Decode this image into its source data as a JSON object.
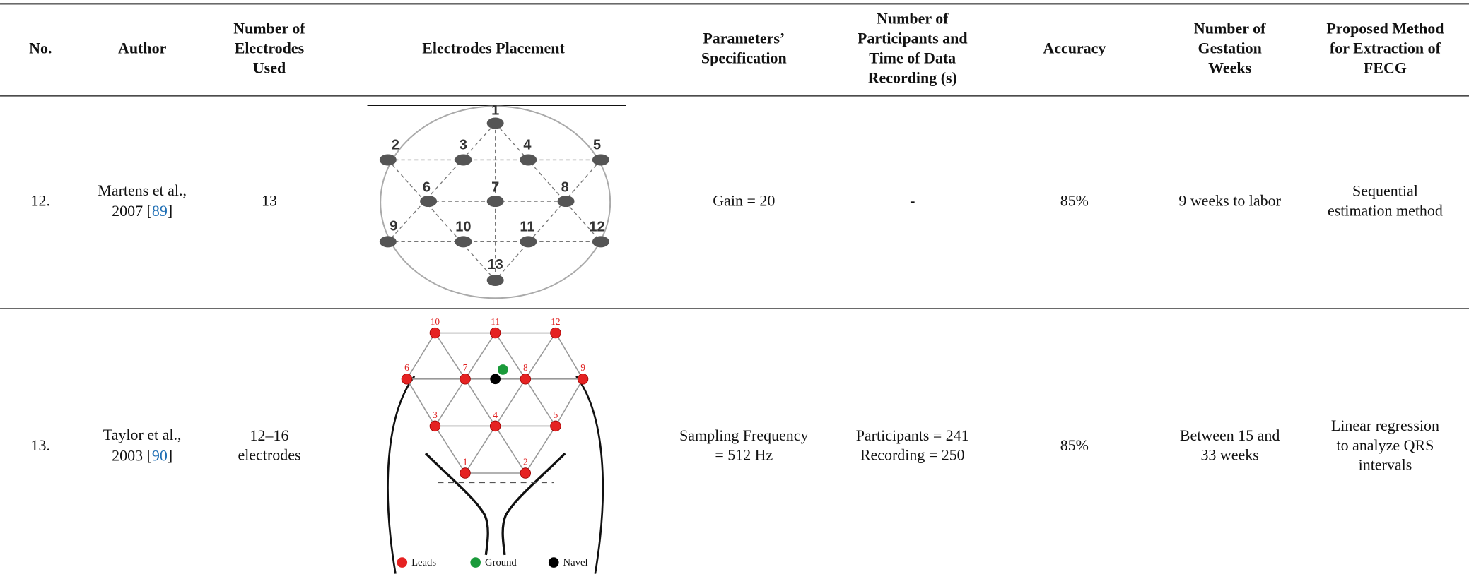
{
  "table": {
    "headers": [
      [
        "No."
      ],
      [
        "Author"
      ],
      [
        "Number of",
        "Electrodes",
        "Used"
      ],
      [
        "Electrodes Placement"
      ],
      [
        "Parameters’",
        "Specification"
      ],
      [
        "Number of",
        "Participants and",
        "Time of Data",
        "Recording (s)"
      ],
      [
        "Accuracy"
      ],
      [
        "Number of",
        "Gestation",
        "Weeks"
      ],
      [
        "Proposed Method",
        "for Extraction of",
        "FECG"
      ]
    ],
    "rows": [
      {
        "no": "12.",
        "author": {
          "line1": "Martens et al.,",
          "before": "2007 [",
          "ref": "89",
          "after": "]"
        },
        "electrodes": [
          "13"
        ],
        "placement": {
          "labels": [
            "1",
            "2",
            "3",
            "4",
            "5",
            "6",
            "7",
            "8",
            "9",
            "10",
            "11",
            "12",
            "13"
          ]
        },
        "parameters": [
          "Gain = 20"
        ],
        "participants": [
          "-"
        ],
        "accuracy": [
          "85%"
        ],
        "gestation": [
          "9 weeks to labor"
        ],
        "method": [
          "Sequential",
          "estimation method"
        ]
      },
      {
        "no": "13.",
        "author": {
          "line1": "Taylor et al.,",
          "before": "2003 [",
          "ref": "90",
          "after": "]"
        },
        "electrodes": [
          "12–16",
          "electrodes"
        ],
        "placement": {
          "labels": [
            "1",
            "2",
            "3",
            "4",
            "5",
            "6",
            "7",
            "8",
            "9",
            "10",
            "11",
            "12"
          ],
          "legend": [
            "Leads",
            "Ground",
            "Navel"
          ]
        },
        "parameters": [
          "Sampling Frequency",
          "= 512 Hz"
        ],
        "participants": [
          "Participants = 241",
          "Recording = 250"
        ],
        "accuracy": [
          "85%"
        ],
        "gestation": [
          "Between 15 and",
          "33 weeks"
        ],
        "method": [
          "Linear regression",
          "to analyze QRS",
          "intervals"
        ]
      }
    ]
  }
}
